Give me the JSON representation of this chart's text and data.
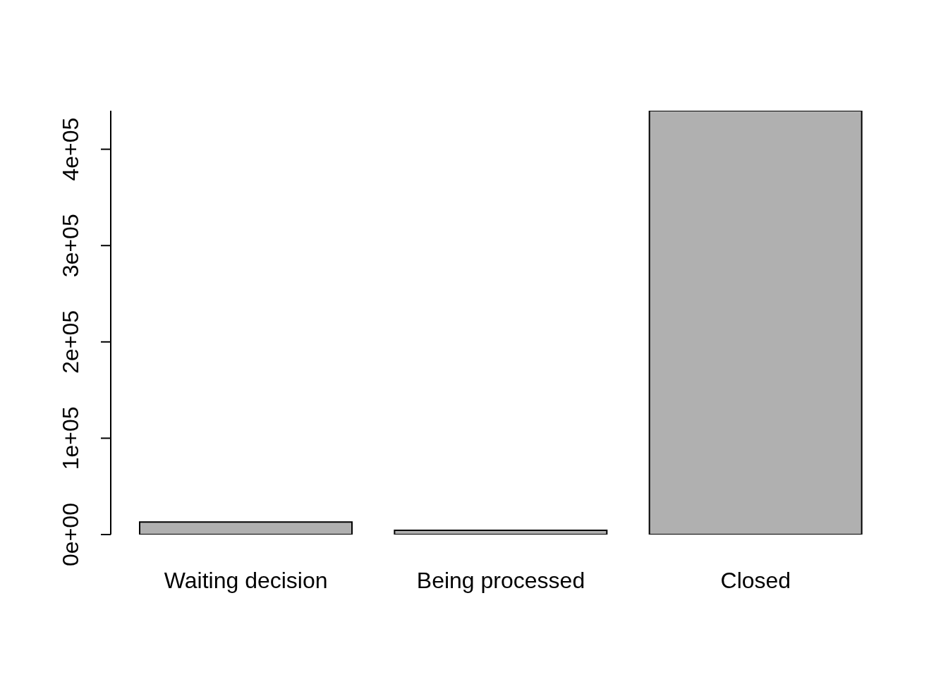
{
  "chart_data": {
    "type": "bar",
    "categories": [
      "Waiting decision",
      "Being processed",
      "Closed"
    ],
    "values": [
      13000,
      4400,
      440000
    ],
    "color": "#b0b0b0",
    "ylim": [
      0,
      440000
    ],
    "yticks": [
      {
        "value": 0,
        "label": "0e+00"
      },
      {
        "value": 100000,
        "label": "1e+05"
      },
      {
        "value": 200000,
        "label": "2e+05"
      },
      {
        "value": 300000,
        "label": "3e+05"
      },
      {
        "value": 400000,
        "label": "4e+05"
      }
    ]
  }
}
